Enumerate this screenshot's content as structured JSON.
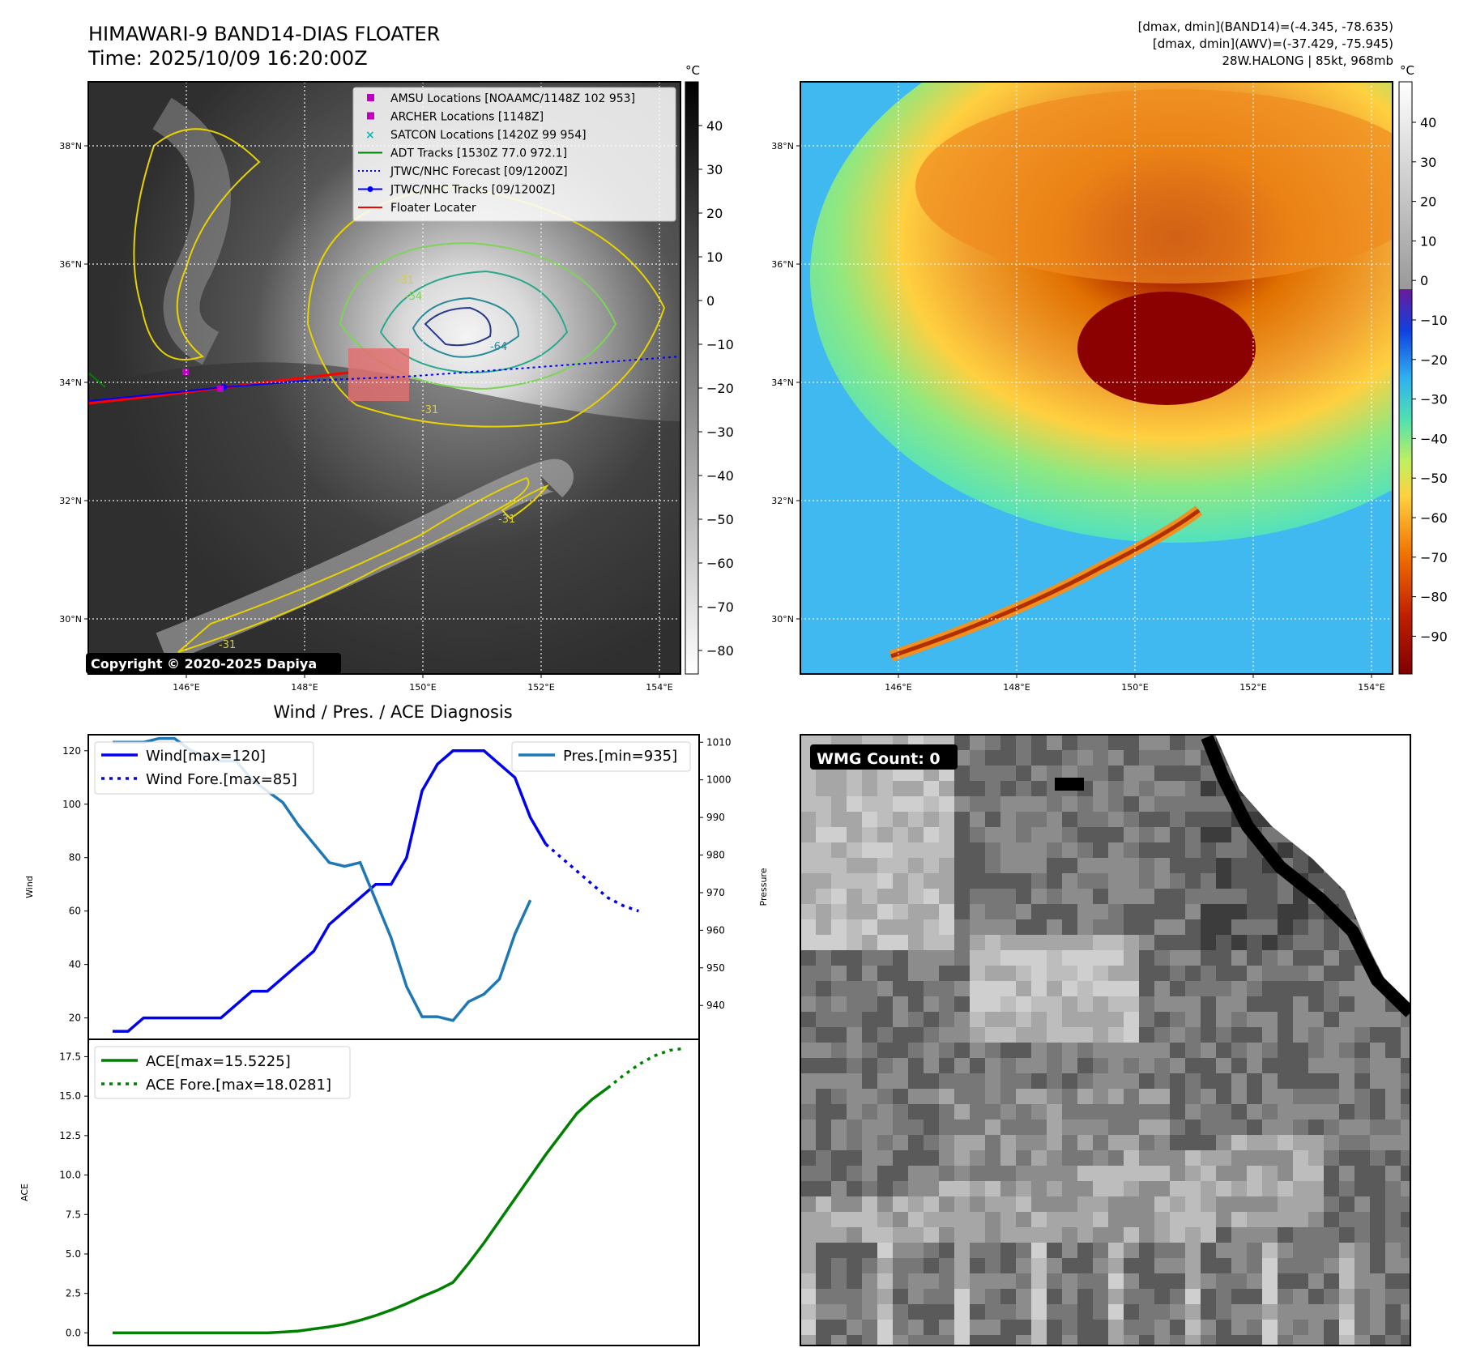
{
  "header": {
    "title_line1": "HIMAWARI-9 BAND14-DIAS FLOATER",
    "title_line2": "Time: 2025/10/09 16:20:00Z",
    "stats_line1": "[dmax, dmin](BAND14)=(-4.345, -78.635)",
    "stats_line2": "[dmax, dmin](AWV)=(-37.429, -75.945)",
    "stats_line3": "28W.HALONG | 85kt, 968mb"
  },
  "map_axes": {
    "lon_ticks": [
      "146°E",
      "148°E",
      "150°E",
      "152°E",
      "154°E"
    ],
    "lat_ticks": [
      "38°N",
      "36°N",
      "34°N",
      "32°N",
      "30°N"
    ]
  },
  "ir_panel": {
    "colorbar_unit": "°C",
    "colorbar_ticks": [
      "40",
      "30",
      "20",
      "10",
      "0",
      "−10",
      "−20",
      "−30",
      "−40",
      "−50",
      "−60",
      "−70",
      "−80"
    ],
    "copyright": "Copyright © 2020-2025 Dapiya",
    "contour_labels": [
      "-31",
      "-54",
      "-64",
      "-31",
      "-31",
      "-31"
    ],
    "legend": [
      {
        "label": "AMSU Locations [NOAAMC/1148Z 102 953]",
        "symbol": "square",
        "color": "#c000c0"
      },
      {
        "label": "ARCHER Locations [1148Z]",
        "symbol": "square",
        "color": "#c000c0"
      },
      {
        "label": "SATCON Locations [1420Z 99 954]",
        "symbol": "x",
        "color": "#00c0c0"
      },
      {
        "label": "ADT Tracks [1530Z 77.0 972.1]",
        "symbol": "line",
        "color": "#008000"
      },
      {
        "label": "JTWC/NHC Forecast [09/1200Z]",
        "symbol": "dotted",
        "color": "#0000ff"
      },
      {
        "label": "JTWC/NHC Tracks [09/1200Z]",
        "symbol": "line-dot",
        "color": "#0000ff"
      },
      {
        "label": "Floater Locater",
        "symbol": "line",
        "color": "#ff0000"
      }
    ]
  },
  "color_panel": {
    "colorbar_unit": "°C",
    "colorbar_ticks": [
      "40",
      "30",
      "20",
      "10",
      "0",
      "−10",
      "−20",
      "−30",
      "−40",
      "−50",
      "−60",
      "−70",
      "−80",
      "−90"
    ]
  },
  "wmg_panel": {
    "badge": "WMG Count: 0"
  },
  "chart_data": [
    {
      "type": "line",
      "title": "Wind / Pres. / ACE Diagnosis",
      "ylabel": "Wind",
      "ylim": [
        12,
        126
      ],
      "yticks": [
        20,
        40,
        60,
        80,
        100,
        120
      ],
      "series": [
        {
          "name": "Wind[max=120]",
          "style": "solid",
          "color": "#0000ee",
          "values": [
            15,
            15,
            20,
            20,
            20,
            20,
            20,
            20,
            25,
            30,
            30,
            35,
            40,
            45,
            55,
            60,
            65,
            70,
            70,
            80,
            105,
            115,
            120,
            120,
            120,
            115,
            110,
            95,
            85
          ]
        },
        {
          "name": "Wind Fore.[max=85]",
          "style": "dotted",
          "color": "#0000ee",
          "x_start": 28,
          "values": [
            85,
            80,
            75,
            70,
            65,
            62,
            60
          ]
        }
      ],
      "y2label": "Pressure",
      "y2lim": [
        931,
        1012
      ],
      "y2ticks": [
        940,
        950,
        960,
        970,
        980,
        990,
        1000,
        1010
      ],
      "series2": [
        {
          "name": "Pres.[min=935]",
          "style": "solid",
          "color": "#1f77b4",
          "values": [
            1010,
            1010,
            1010,
            1011,
            1011,
            1008,
            1006,
            1005,
            1005,
            1000,
            997,
            994,
            988,
            983,
            978,
            977,
            978,
            968,
            958,
            945,
            937,
            937,
            936,
            941,
            943,
            947,
            959,
            968
          ]
        }
      ]
    },
    {
      "type": "line",
      "ylabel": "ACE",
      "ylim": [
        -0.8,
        18.6
      ],
      "yticks": [
        0.0,
        2.5,
        5.0,
        7.5,
        10.0,
        12.5,
        15.0,
        17.5
      ],
      "series": [
        {
          "name": "ACE[max=15.5225]",
          "style": "solid",
          "color": "#008000",
          "values": [
            0.0,
            0.0,
            0.0,
            0.0,
            0.0,
            0.0,
            0.0,
            0.0,
            0.0,
            0.0,
            0.0,
            0.05,
            0.12,
            0.25,
            0.38,
            0.55,
            0.8,
            1.1,
            1.45,
            1.85,
            2.3,
            2.7,
            3.2,
            4.4,
            5.7,
            7.1,
            8.5,
            9.9,
            11.3,
            12.6,
            13.9,
            14.8,
            15.52
          ]
        },
        {
          "name": "ACE Fore.[max=18.0281]",
          "style": "dotted",
          "color": "#008000",
          "x_start": 32,
          "values": [
            15.52,
            16.3,
            17.0,
            17.55,
            17.9,
            18.03
          ]
        }
      ]
    }
  ]
}
